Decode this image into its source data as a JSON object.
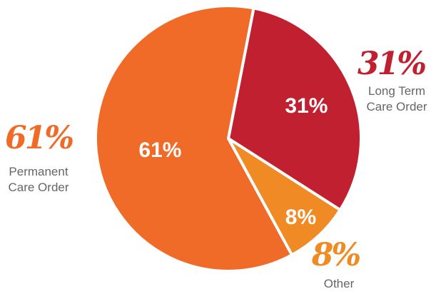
{
  "chart_data": {
    "type": "pie",
    "title": "",
    "slices": [
      {
        "label": "Long Term Care Order",
        "label_lines": [
          "Long Term",
          "Care Order"
        ],
        "value": 31,
        "inner_label": "31%",
        "callout": "31%",
        "color": "#c0202f"
      },
      {
        "label": "Other",
        "label_lines": [
          "Other"
        ],
        "value": 8,
        "inner_label": "8%",
        "callout": "8%",
        "color": "#f08a24"
      },
      {
        "label": "Permanent Care Order",
        "label_lines": [
          "Permanent",
          "Care Order"
        ],
        "value": 61,
        "inner_label": "61%",
        "callout": "61%",
        "color": "#f06a28"
      }
    ]
  }
}
